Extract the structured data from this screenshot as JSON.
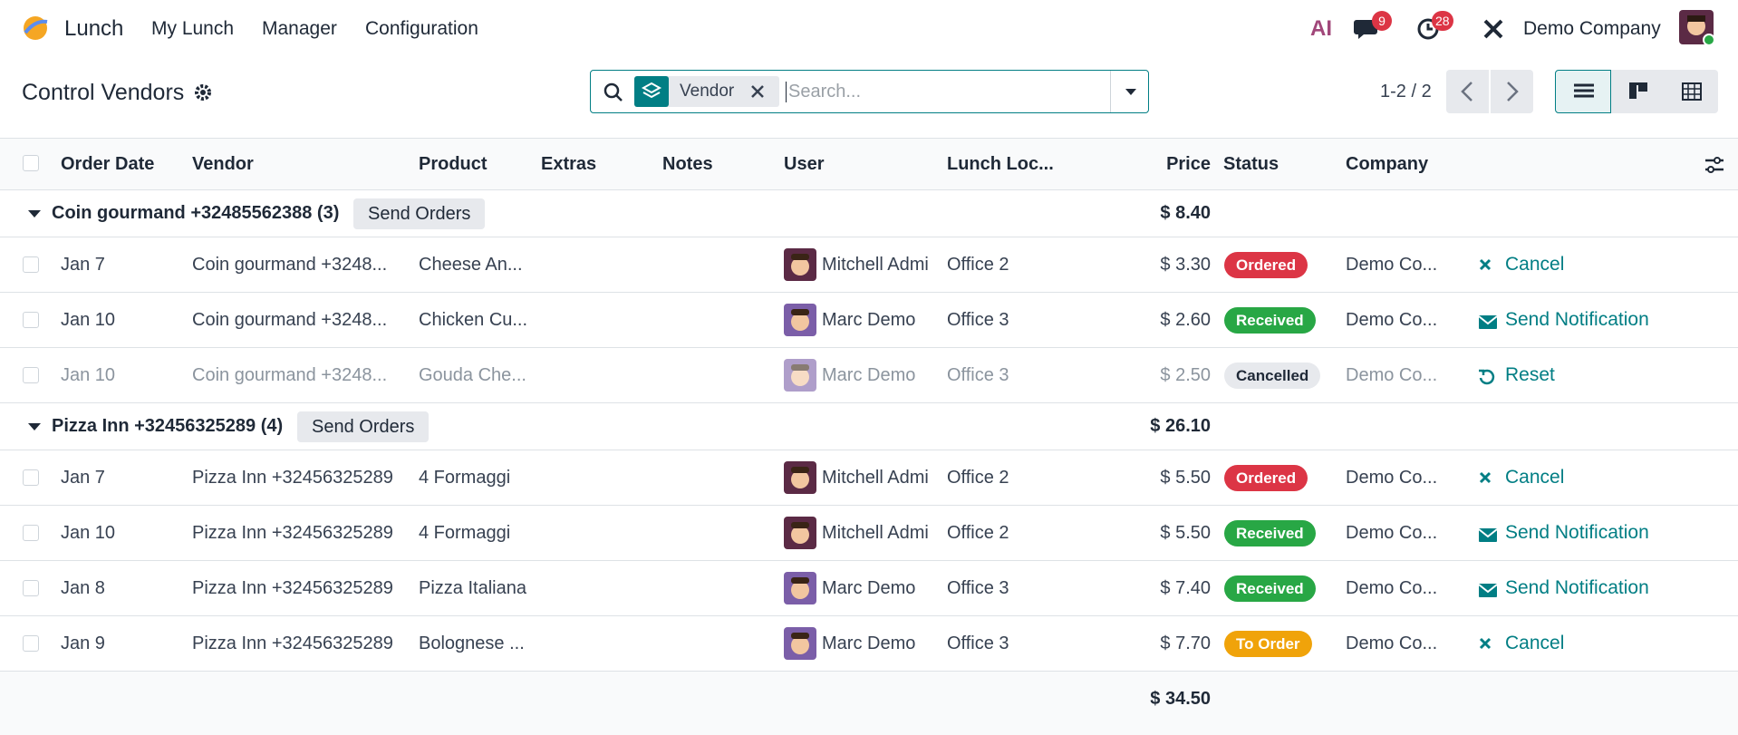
{
  "navbar": {
    "app": "Lunch",
    "menus": [
      "My Lunch",
      "Manager",
      "Configuration"
    ],
    "ai": "AI",
    "messages_count": 9,
    "activities_count": 28,
    "company": "Demo Company"
  },
  "control_panel": {
    "title": "Control Vendors",
    "facet": "Vendor",
    "search_placeholder": "Search...",
    "pager": "1-2 / 2"
  },
  "table": {
    "columns": [
      "Order Date",
      "Vendor",
      "Product",
      "Extras",
      "Notes",
      "User",
      "Lunch Loc...",
      "Price",
      "Status",
      "Company"
    ],
    "groups": [
      {
        "name": "Coin gourmand +32485562388 (3)",
        "button": "Send Orders",
        "total": "$ 8.40",
        "rows": [
          {
            "date": "Jan 7",
            "vendor": "Coin gourmand +3248...",
            "product": "Cheese An...",
            "user": "Mitchell Admi",
            "avatar_color": "#5b2a45",
            "location": "Office 2",
            "price": "$ 3.30",
            "status": "Ordered",
            "status_color": "#dc3545",
            "company": "Demo Co...",
            "action": "Cancel",
            "action_icon": "cancel",
            "muted": false
          },
          {
            "date": "Jan 10",
            "vendor": "Coin gourmand +3248...",
            "product": "Chicken Cu...",
            "user": "Marc Demo",
            "avatar_color": "#7b5ea8",
            "location": "Office 3",
            "price": "$ 2.60",
            "status": "Received",
            "status_color": "#28a745",
            "company": "Demo Co...",
            "action": "Send Notification",
            "action_icon": "mail",
            "muted": false
          },
          {
            "date": "Jan 10",
            "vendor": "Coin gourmand +3248...",
            "product": "Gouda Che...",
            "user": "Marc Demo",
            "avatar_color": "#7b5ea8",
            "location": "Office 3",
            "price": "$ 2.50",
            "status": "Cancelled",
            "status_color": "#e7e9ed",
            "company": "Demo Co...",
            "action": "Reset",
            "action_icon": "reset",
            "muted": true
          }
        ]
      },
      {
        "name": "Pizza Inn +32456325289 (4)",
        "button": "Send Orders",
        "total": "$ 26.10",
        "rows": [
          {
            "date": "Jan 7",
            "vendor": "Pizza Inn +32456325289",
            "product": "4 Formaggi",
            "user": "Mitchell Admi",
            "avatar_color": "#5b2a45",
            "location": "Office 2",
            "price": "$ 5.50",
            "status": "Ordered",
            "status_color": "#dc3545",
            "company": "Demo Co...",
            "action": "Cancel",
            "action_icon": "cancel",
            "muted": false
          },
          {
            "date": "Jan 10",
            "vendor": "Pizza Inn +32456325289",
            "product": "4 Formaggi",
            "user": "Mitchell Admi",
            "avatar_color": "#5b2a45",
            "location": "Office 2",
            "price": "$ 5.50",
            "status": "Received",
            "status_color": "#28a745",
            "company": "Demo Co...",
            "action": "Send Notification",
            "action_icon": "mail",
            "muted": false
          },
          {
            "date": "Jan 8",
            "vendor": "Pizza Inn +32456325289",
            "product": "Pizza Italiana",
            "user": "Marc Demo",
            "avatar_color": "#7b5ea8",
            "location": "Office 3",
            "price": "$ 7.40",
            "status": "Received",
            "status_color": "#28a745",
            "company": "Demo Co...",
            "action": "Send Notification",
            "action_icon": "mail",
            "muted": false
          },
          {
            "date": "Jan 9",
            "vendor": "Pizza Inn +32456325289",
            "product": "Bolognese ...",
            "user": "Marc Demo",
            "avatar_color": "#7b5ea8",
            "location": "Office 3",
            "price": "$ 7.70",
            "status": "To Order",
            "status_color": "#f0a30a",
            "company": "Demo Co...",
            "action": "Cancel",
            "action_icon": "cancel",
            "muted": false
          }
        ]
      }
    ],
    "total": "$ 34.50"
  }
}
